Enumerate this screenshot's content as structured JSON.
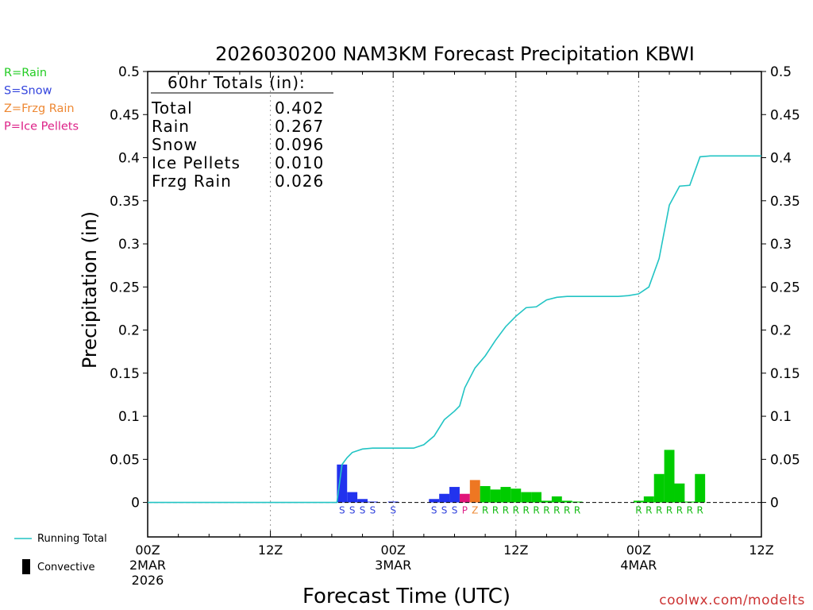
{
  "chart_data": {
    "type": "bar",
    "title": "2026030200 NAM3KM Forecast Precipitation KBWI",
    "xlabel": "Forecast Time (UTC)",
    "ylabel": "Precipitation (in)",
    "ylim": [
      -0.04,
      0.5
    ],
    "xlim_hours": [
      0,
      60
    ],
    "y_ticks": [
      0,
      0.05,
      0.1,
      0.15,
      0.2,
      0.25,
      0.3,
      0.35,
      0.4,
      0.45,
      0.5
    ],
    "y_tick_labels": [
      "0",
      "0.05",
      "0.1",
      "0.15",
      "0.2",
      "0.25",
      "0.3",
      "0.35",
      "0.4",
      "0.45",
      "0.5"
    ],
    "x_ticks": [
      {
        "hour": 0,
        "lines": [
          "00Z",
          "2MAR",
          "2026"
        ]
      },
      {
        "hour": 12,
        "lines": [
          "12Z"
        ]
      },
      {
        "hour": 24,
        "lines": [
          "00Z",
          "3MAR"
        ]
      },
      {
        "hour": 36,
        "lines": [
          "12Z"
        ]
      },
      {
        "hour": 48,
        "lines": [
          "00Z",
          "4MAR"
        ]
      },
      {
        "hour": 60,
        "lines": [
          "12Z"
        ]
      }
    ],
    "totals": {
      "header": "60hr Totals (in):",
      "rows": [
        {
          "label": "Total",
          "value": "0.402"
        },
        {
          "label": "Rain",
          "value": "0.267"
        },
        {
          "label": "Snow",
          "value": "0.096"
        },
        {
          "label": "Ice Pellets",
          "value": "0.010"
        },
        {
          "label": "Frzg Rain",
          "value": "0.026"
        }
      ]
    },
    "type_legend": [
      {
        "text": "R=Rain",
        "color": "#22cc22"
      },
      {
        "text": "S=Snow",
        "color": "#3344dd"
      },
      {
        "text": "Z=Frzg Rain",
        "color": "#ee8833"
      },
      {
        "text": "P=Ice Pellets",
        "color": "#dd2288"
      }
    ],
    "type_colors": {
      "R": "#00cc00",
      "S": "#2233ee",
      "Z": "#ee7722",
      "P": "#e0157a"
    },
    "type_label_colors": {
      "R": "#11bb11",
      "S": "#3344dd",
      "Z": "#ee8833",
      "P": "#dd2288"
    },
    "bars": [
      {
        "hour": 19,
        "value": 0.044,
        "type": "S"
      },
      {
        "hour": 20,
        "value": 0.012,
        "type": "S"
      },
      {
        "hour": 21,
        "value": 0.004,
        "type": "S"
      },
      {
        "hour": 22,
        "value": 0.001,
        "type": "S"
      },
      {
        "hour": 24,
        "value": 0.001,
        "type": "S"
      },
      {
        "hour": 28,
        "value": 0.004,
        "type": "S"
      },
      {
        "hour": 29,
        "value": 0.01,
        "type": "S"
      },
      {
        "hour": 30,
        "value": 0.018,
        "type": "S"
      },
      {
        "hour": 31,
        "value": 0.01,
        "type": "P"
      },
      {
        "hour": 32,
        "value": 0.026,
        "type": "Z"
      },
      {
        "hour": 33,
        "value": 0.019,
        "type": "R"
      },
      {
        "hour": 34,
        "value": 0.015,
        "type": "R"
      },
      {
        "hour": 35,
        "value": 0.018,
        "type": "R"
      },
      {
        "hour": 36,
        "value": 0.016,
        "type": "R"
      },
      {
        "hour": 37,
        "value": 0.012,
        "type": "R"
      },
      {
        "hour": 38,
        "value": 0.012,
        "type": "R"
      },
      {
        "hour": 39,
        "value": 0.002,
        "type": "R"
      },
      {
        "hour": 40,
        "value": 0.007,
        "type": "R"
      },
      {
        "hour": 41,
        "value": 0.002,
        "type": "R"
      },
      {
        "hour": 42,
        "value": 0.001,
        "type": "R"
      },
      {
        "hour": 48,
        "value": 0.002,
        "type": "R"
      },
      {
        "hour": 49,
        "value": 0.007,
        "type": "R"
      },
      {
        "hour": 50,
        "value": 0.033,
        "type": "R"
      },
      {
        "hour": 51,
        "value": 0.061,
        "type": "R"
      },
      {
        "hour": 52,
        "value": 0.022,
        "type": "R"
      },
      {
        "hour": 53,
        "value": 0.001,
        "type": "R"
      },
      {
        "hour": 54,
        "value": 0.033,
        "type": "R"
      }
    ],
    "running_total": {
      "name": "Running Total",
      "color": "#22c4c4",
      "x": [
        0,
        18.5,
        19,
        19.5,
        20,
        21,
        22,
        24,
        26,
        27,
        28,
        29,
        30,
        30.5,
        31,
        32,
        33,
        34,
        35,
        36,
        37,
        38,
        39,
        40,
        41,
        42,
        44,
        46,
        47,
        48,
        49,
        50,
        51,
        52,
        53,
        54,
        55,
        60
      ],
      "y": [
        0,
        0,
        0.044,
        0.052,
        0.058,
        0.062,
        0.063,
        0.063,
        0.063,
        0.067,
        0.077,
        0.096,
        0.106,
        0.112,
        0.133,
        0.156,
        0.17,
        0.188,
        0.204,
        0.216,
        0.226,
        0.227,
        0.235,
        0.238,
        0.239,
        0.239,
        0.239,
        0.239,
        0.24,
        0.242,
        0.25,
        0.283,
        0.345,
        0.367,
        0.368,
        0.401,
        0.402,
        0.402
      ]
    },
    "bottom_legend": [
      {
        "text": "Running Total",
        "kind": "line"
      },
      {
        "text": "Convective",
        "kind": "box"
      }
    ],
    "credit": "coolwx.com/modelts"
  }
}
